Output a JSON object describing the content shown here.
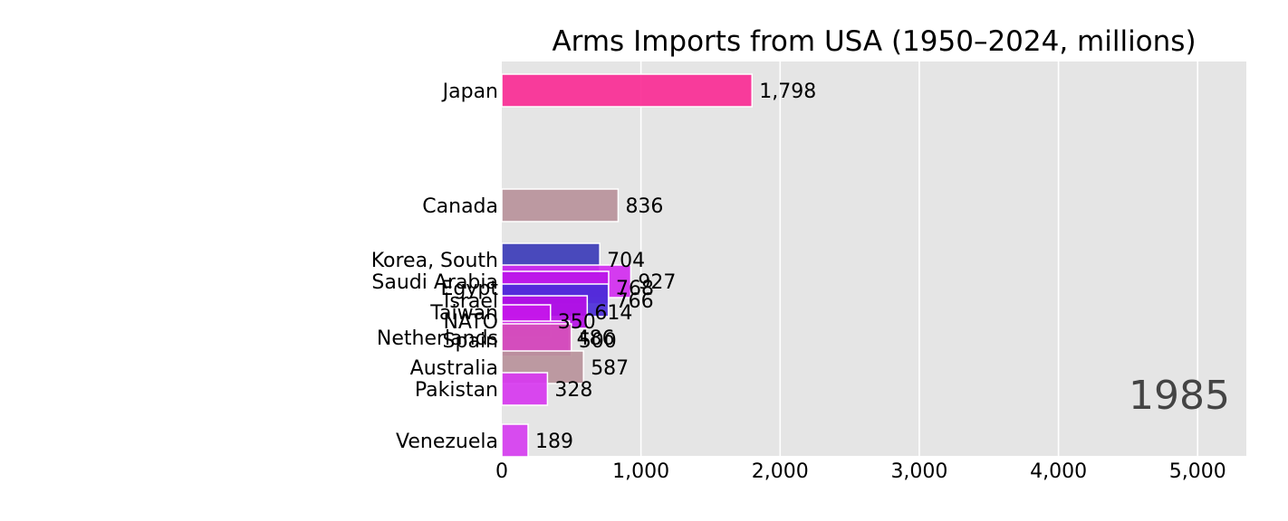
{
  "chart_data": {
    "type": "bar",
    "orientation": "horizontal",
    "title": "Arms Imports from USA (1950–2024, millions)",
    "year": "1985",
    "xlim": [
      0,
      5350
    ],
    "xticks": [
      0,
      1000,
      2000,
      3000,
      4000,
      5000
    ],
    "xtick_labels": [
      "0",
      "1,000",
      "2,000",
      "3,000",
      "4,000",
      "5,000"
    ],
    "grid": true,
    "background_color": "#e5e5e5",
    "bars": [
      {
        "category": "Japan",
        "value": 1798,
        "label": "1,798",
        "color": "#fa2d95"
      },
      {
        "category": "Canada",
        "value": 836,
        "label": "836",
        "color": "#b8939b"
      },
      {
        "category": "Korea, South",
        "value": 704,
        "label": "704",
        "color": "#3c3cb8"
      },
      {
        "category": "Saudi Arabia",
        "value": 927,
        "label": "927",
        "color": "#d32cf0"
      },
      {
        "category": "Egypt",
        "value": 768,
        "label": "768",
        "color": "#bb16e8"
      },
      {
        "category": "Israel",
        "value": 766,
        "label": "766",
        "color": "#4b2ed8"
      },
      {
        "category": "Taiwan",
        "value": 614,
        "label": "614",
        "color": "#b60fe6"
      },
      {
        "category": "NATO",
        "value": 350,
        "label": "350",
        "color": "#c617ea"
      },
      {
        "category": "Netherlands",
        "value": 486,
        "label": "486",
        "color": "#d22ee8"
      },
      {
        "category": "Spain",
        "value": 500,
        "label": "500",
        "color": "#d44fb8"
      },
      {
        "category": "Australia",
        "value": 587,
        "label": "587",
        "color": "#b8939b"
      },
      {
        "category": "Pakistan",
        "value": 328,
        "label": "328",
        "color": "#d738ef"
      },
      {
        "category": "Venezuela",
        "value": 189,
        "label": "189",
        "color": "#d63ef0"
      }
    ]
  }
}
